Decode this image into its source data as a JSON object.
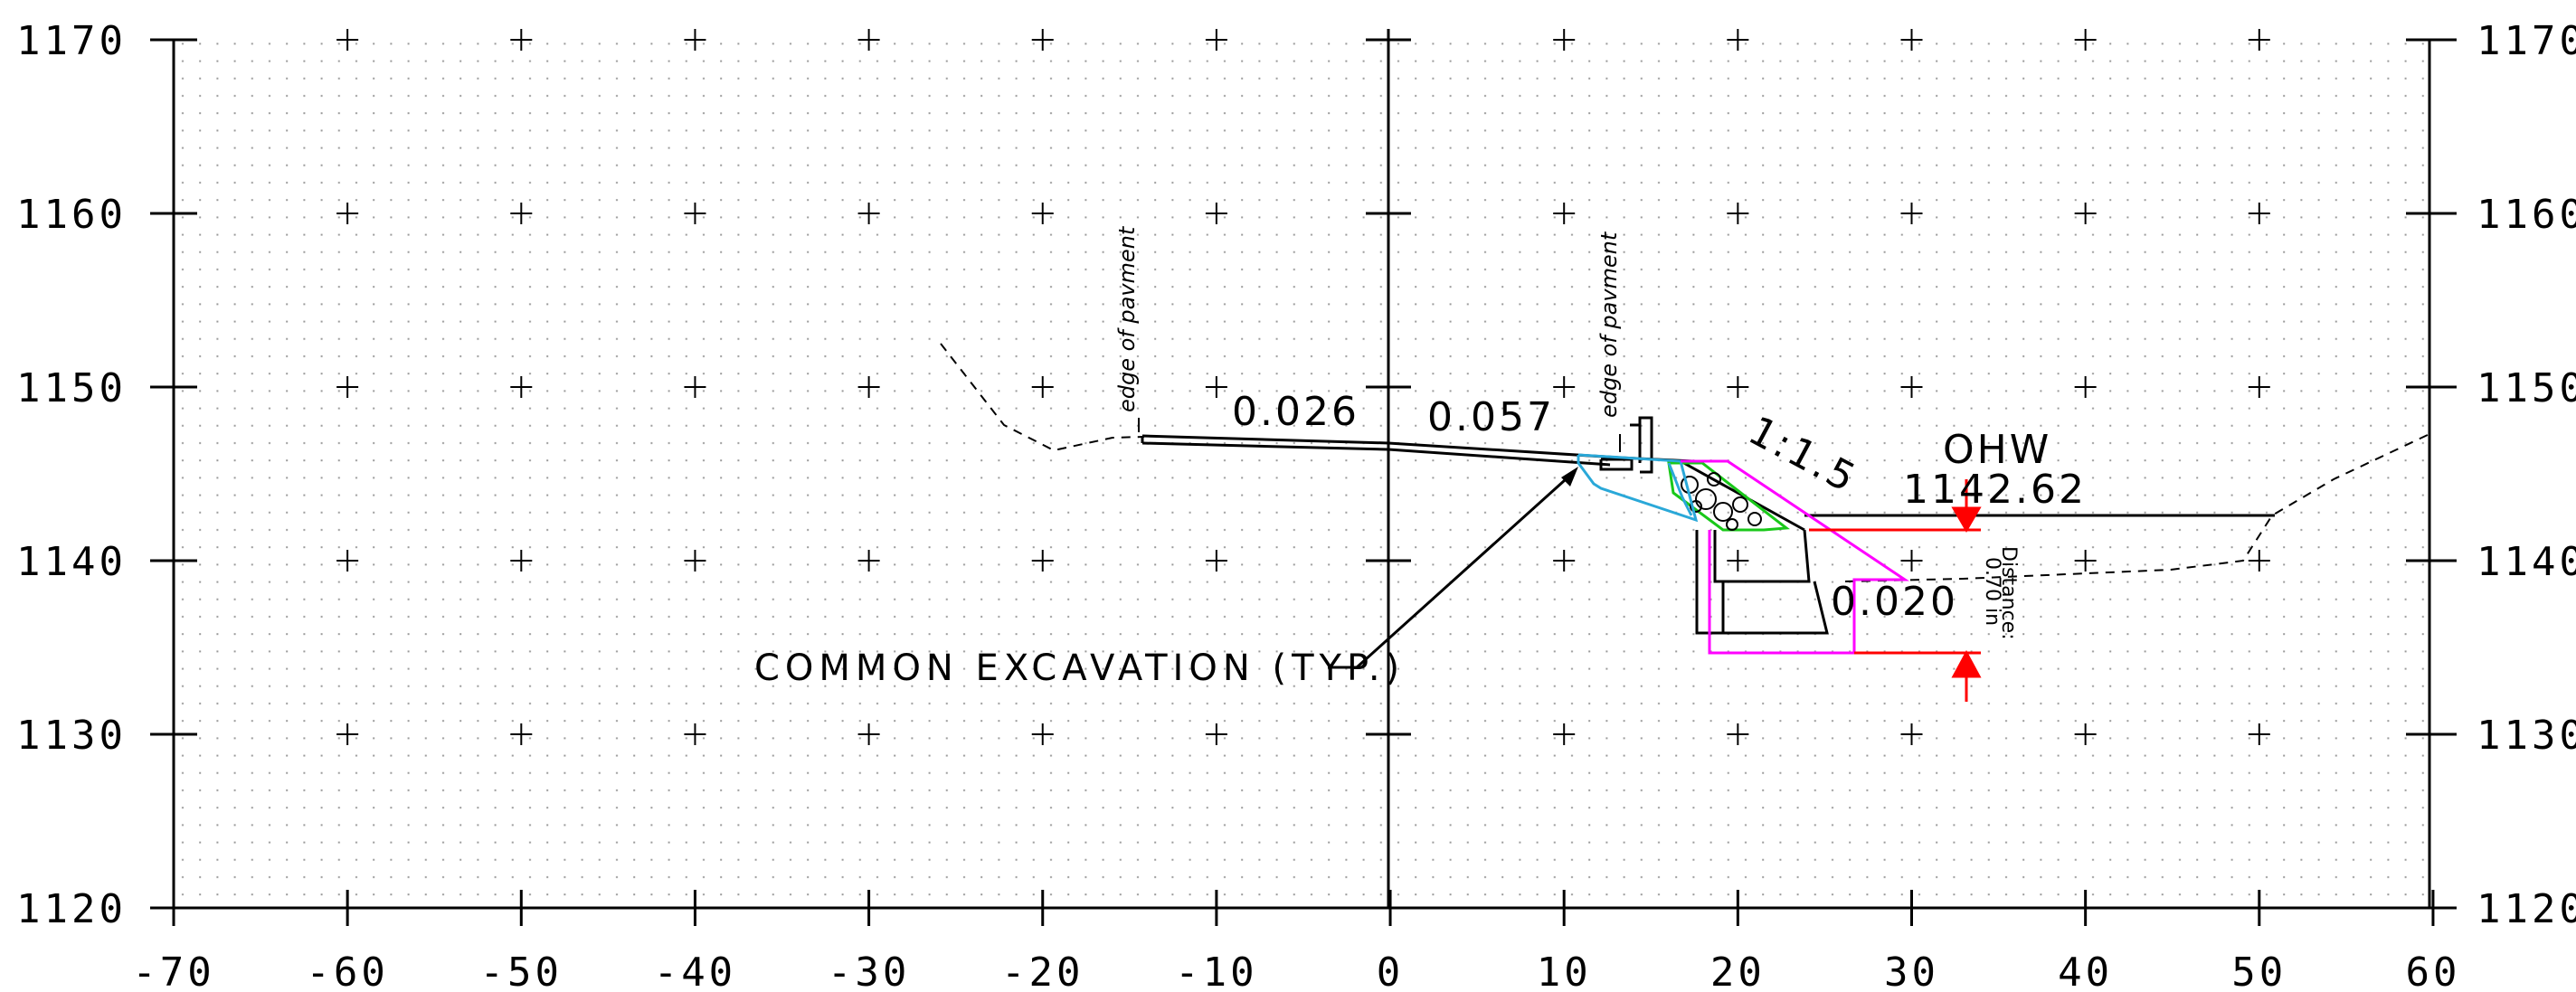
{
  "axes": {
    "x_ticks": [
      -70,
      -60,
      -50,
      -40,
      -30,
      -20,
      -10,
      0,
      10,
      20,
      30,
      40,
      50,
      60
    ],
    "y_ticks": [
      1170,
      1160,
      1150,
      1140,
      1130,
      1120
    ],
    "x_tick_labels": [
      "-70",
      "-60",
      "-50",
      "-40",
      "-30",
      "-20",
      "-10",
      "0",
      "10",
      "20",
      "30",
      "40",
      "50",
      "60"
    ],
    "y_tick_labels": [
      "1170",
      "1160",
      "1150",
      "1140",
      "1130",
      "1120"
    ]
  },
  "labels": {
    "edge_left": "edge of pavment",
    "edge_right": "edge of pavment",
    "slope_left": "0.026",
    "slope_mid": "0.057",
    "slope_side": "1:1.5",
    "ohw": "OHW",
    "ohw_elev": "1142.62",
    "slope_bottom": "0.020",
    "distance_label": "Distance:",
    "distance_value": "0.70 in",
    "excavation_note": "COMMON EXCAVATION (TYP.)"
  },
  "colors": {
    "line": "#000000",
    "magenta": "#ff00ff",
    "cyan": "#2aa8d8",
    "green": "#19c819",
    "red": "#ff0000",
    "grid_dot": "#9a9a9a"
  }
}
